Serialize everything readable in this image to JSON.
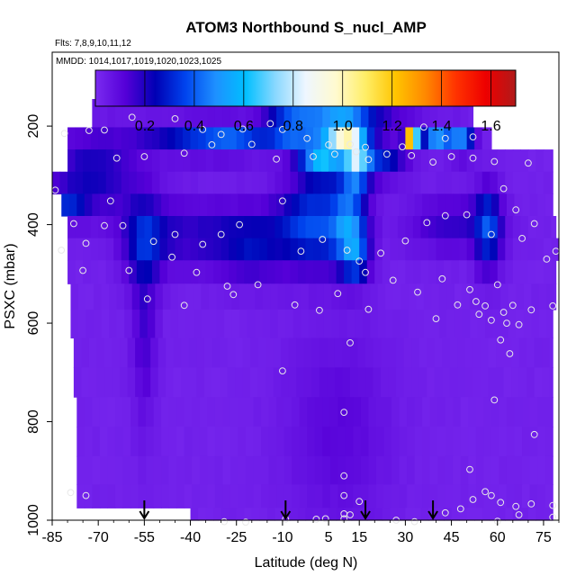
{
  "chart_data": {
    "type": "heatmap",
    "title": "ATOM3 Northbound S_nucl_AMP",
    "subtitle_flights": "Flts: 7,8,9,10,11,12",
    "subtitle_dates": "MMDD: 1014,1017,1019,1020,1023,1025",
    "xlabel": "Latitude (deg N)",
    "ylabel": "PSXC (mbar)",
    "xlim": [
      -85,
      80
    ],
    "ylim": [
      1000,
      50
    ],
    "x_ticks": [
      -85,
      -70,
      -55,
      -40,
      -25,
      -10,
      5,
      15,
      30,
      45,
      60,
      75
    ],
    "y_ticks": [
      1000,
      800,
      600,
      400,
      200
    ],
    "colorbar": {
      "range": [
        0,
        1.7
      ],
      "ticks": [
        0.2,
        0.4,
        0.6,
        0.8,
        1.0,
        1.2,
        1.4,
        1.6
      ],
      "tick_labels": [
        "0.2",
        "0.4",
        "0.6",
        "0.8",
        "1.0",
        "1.2",
        "1.4",
        "1.6"
      ],
      "colors": [
        "#7a2bf0",
        "#5500d8",
        "#0000b4",
        "#0044ee",
        "#1e90ff",
        "#00bfff",
        "#8ad8ff",
        "#eef6ff",
        "#fffad0",
        "#ffee66",
        "#ffc400",
        "#ff8800",
        "#ff3300",
        "#ee0000",
        "#b01a1a"
      ]
    },
    "arrows_latitude": [
      -55,
      -9,
      17,
      39
    ],
    "rows": [
      {
        "p": 180,
        "lat0": -72,
        "lat1": 52
      },
      {
        "p": 225,
        "lat0": -80,
        "lat1": 58
      },
      {
        "p": 270,
        "lat0": -80,
        "lat1": 78
      },
      {
        "p": 315,
        "lat0": -85,
        "lat1": 78
      },
      {
        "p": 360,
        "lat0": -82,
        "lat1": 78
      },
      {
        "p": 405,
        "lat0": -80,
        "lat1": 79
      },
      {
        "p": 450,
        "lat0": -80,
        "lat1": 80
      },
      {
        "p": 495,
        "lat0": -80,
        "lat1": 79
      },
      {
        "p": 545,
        "lat0": -79,
        "lat1": 79
      },
      {
        "p": 600,
        "lat0": -79,
        "lat1": 78
      },
      {
        "p": 660,
        "lat0": -78,
        "lat1": 78
      },
      {
        "p": 720,
        "lat0": -78,
        "lat1": 78
      },
      {
        "p": 780,
        "lat0": -77,
        "lat1": 78
      },
      {
        "p": 840,
        "lat0": -77,
        "lat1": 78
      },
      {
        "p": 900,
        "lat0": -77,
        "lat1": 78
      },
      {
        "p": 955,
        "lat0": -77,
        "lat1": 78
      },
      {
        "p": 995,
        "lat0": -40,
        "lat1": 78
      }
    ],
    "features": [
      {
        "lat": -38,
        "p": 225,
        "amp": 0.25,
        "slat": 14,
        "sp": 25
      },
      {
        "lat": -25,
        "p": 225,
        "amp": 0.2,
        "slat": 8,
        "sp": 20
      },
      {
        "lat": -8,
        "p": 205,
        "amp": 0.25,
        "slat": 5,
        "sp": 30
      },
      {
        "lat": 5,
        "p": 200,
        "amp": 0.55,
        "slat": 10,
        "sp": 18
      },
      {
        "lat": 11,
        "p": 215,
        "amp": 0.75,
        "slat": 4,
        "sp": 18
      },
      {
        "lat": 12,
        "p": 200,
        "amp": 0.35,
        "slat": 14,
        "sp": 15
      },
      {
        "lat": 32,
        "p": 225,
        "amp": 1.35,
        "slat": 1.3,
        "sp": 14
      },
      {
        "lat": 40,
        "p": 225,
        "amp": 0.45,
        "slat": 3,
        "sp": 16
      },
      {
        "lat": 48,
        "p": 230,
        "amp": 0.45,
        "slat": 3,
        "sp": 20
      },
      {
        "lat": 3,
        "p": 270,
        "amp": 0.55,
        "slat": 5,
        "sp": 25
      },
      {
        "lat": 14,
        "p": 280,
        "amp": 0.65,
        "slat": 3,
        "sp": 25
      },
      {
        "lat": 22,
        "p": 280,
        "amp": 0.3,
        "slat": 6,
        "sp": 20
      },
      {
        "lat": -72,
        "p": 300,
        "amp": 0.2,
        "slat": 10,
        "sp": 60
      },
      {
        "lat": -80,
        "p": 360,
        "amp": 0.2,
        "slat": 4,
        "sp": 20
      },
      {
        "lat": -55,
        "p": 430,
        "amp": 0.2,
        "slat": 5,
        "sp": 60
      },
      {
        "lat": -40,
        "p": 420,
        "amp": 0.15,
        "slat": 12,
        "sp": 50
      },
      {
        "lat": -20,
        "p": 440,
        "amp": 0.2,
        "slat": 8,
        "sp": 50
      },
      {
        "lat": 0,
        "p": 400,
        "amp": 0.35,
        "slat": 8,
        "sp": 60
      },
      {
        "lat": 12,
        "p": 400,
        "amp": 0.4,
        "slat": 4,
        "sp": 60
      },
      {
        "lat": 14,
        "p": 470,
        "amp": 0.25,
        "slat": 3,
        "sp": 30
      },
      {
        "lat": 45,
        "p": 400,
        "amp": 0.15,
        "slat": 10,
        "sp": 40
      },
      {
        "lat": 57,
        "p": 410,
        "amp": 0.3,
        "slat": 3,
        "sp": 60
      },
      {
        "lat": -55,
        "p": 600,
        "amp": 0.12,
        "slat": 3,
        "sp": 140
      },
      {
        "lat": 8,
        "p": 820,
        "amp": 0.08,
        "slat": 12,
        "sp": 150
      }
    ],
    "cloud_points": [
      {
        "lat": -73,
        "p": 209
      },
      {
        "lat": -68,
        "p": 208
      },
      {
        "lat": -59,
        "p": 182
      },
      {
        "lat": -45,
        "p": 185
      },
      {
        "lat": -36,
        "p": 207
      },
      {
        "lat": -30,
        "p": 217
      },
      {
        "lat": -23,
        "p": 206
      },
      {
        "lat": -14,
        "p": 195
      },
      {
        "lat": -10,
        "p": 207
      },
      {
        "lat": -2,
        "p": 225
      },
      {
        "lat": 5,
        "p": 238
      },
      {
        "lat": 12,
        "p": 237
      },
      {
        "lat": 17,
        "p": 243
      },
      {
        "lat": 29,
        "p": 242
      },
      {
        "lat": 36,
        "p": 202
      },
      {
        "lat": 43,
        "p": 225
      },
      {
        "lat": 52,
        "p": 222
      },
      {
        "lat": -81,
        "p": 215
      },
      {
        "lat": -64,
        "p": 265
      },
      {
        "lat": -55,
        "p": 262
      },
      {
        "lat": -42,
        "p": 255
      },
      {
        "lat": -33,
        "p": 238
      },
      {
        "lat": -20,
        "p": 237
      },
      {
        "lat": -12,
        "p": 267
      },
      {
        "lat": 0,
        "p": 262
      },
      {
        "lat": 7,
        "p": 257
      },
      {
        "lat": 14,
        "p": 252
      },
      {
        "lat": 18,
        "p": 268
      },
      {
        "lat": 24,
        "p": 257
      },
      {
        "lat": 32,
        "p": 260
      },
      {
        "lat": 39,
        "p": 273
      },
      {
        "lat": 45,
        "p": 262
      },
      {
        "lat": 52,
        "p": 265
      },
      {
        "lat": 59,
        "p": 272
      },
      {
        "lat": 70,
        "p": 275
      },
      {
        "lat": -84,
        "p": 330
      },
      {
        "lat": -78,
        "p": 398
      },
      {
        "lat": -74,
        "p": 438
      },
      {
        "lat": -66,
        "p": 352
      },
      {
        "lat": -62,
        "p": 402
      },
      {
        "lat": -52,
        "p": 434
      },
      {
        "lat": -45,
        "p": 420
      },
      {
        "lat": -36,
        "p": 440
      },
      {
        "lat": -30,
        "p": 420
      },
      {
        "lat": -24,
        "p": 400
      },
      {
        "lat": -10,
        "p": 352
      },
      {
        "lat": -4,
        "p": 454
      },
      {
        "lat": 3,
        "p": 430
      },
      {
        "lat": 11,
        "p": 452
      },
      {
        "lat": 15,
        "p": 474
      },
      {
        "lat": 22,
        "p": 458
      },
      {
        "lat": 30,
        "p": 433
      },
      {
        "lat": 37,
        "p": 396
      },
      {
        "lat": 43,
        "p": 382
      },
      {
        "lat": 50,
        "p": 380
      },
      {
        "lat": 58,
        "p": 420
      },
      {
        "lat": 62,
        "p": 327
      },
      {
        "lat": 66,
        "p": 370
      },
      {
        "lat": 68,
        "p": 428
      },
      {
        "lat": 72,
        "p": 398
      },
      {
        "lat": 76,
        "p": 470
      },
      {
        "lat": 79,
        "p": 454
      },
      {
        "lat": -82,
        "p": 452
      },
      {
        "lat": -75,
        "p": 493
      },
      {
        "lat": -68,
        "p": 402
      },
      {
        "lat": -60,
        "p": 493
      },
      {
        "lat": -46,
        "p": 466
      },
      {
        "lat": -38,
        "p": 497
      },
      {
        "lat": -28,
        "p": 525
      },
      {
        "lat": -18,
        "p": 522
      },
      {
        "lat": -6,
        "p": 563
      },
      {
        "lat": 8,
        "p": 540
      },
      {
        "lat": 17,
        "p": 497
      },
      {
        "lat": 26,
        "p": 513
      },
      {
        "lat": 34,
        "p": 537
      },
      {
        "lat": 42,
        "p": 510
      },
      {
        "lat": 47,
        "p": 563
      },
      {
        "lat": 51,
        "p": 532
      },
      {
        "lat": 53,
        "p": 556
      },
      {
        "lat": 56,
        "p": 565
      },
      {
        "lat": 60,
        "p": 522
      },
      {
        "lat": 62,
        "p": 578
      },
      {
        "lat": 65,
        "p": 564
      },
      {
        "lat": 71,
        "p": 573
      },
      {
        "lat": 78,
        "p": 565
      },
      {
        "lat": -54,
        "p": 551
      },
      {
        "lat": -42,
        "p": 564
      },
      {
        "lat": -26,
        "p": 542
      },
      {
        "lat": 2,
        "p": 574
      },
      {
        "lat": 12,
        "p": 640
      },
      {
        "lat": 18,
        "p": 572
      },
      {
        "lat": 40,
        "p": 591
      },
      {
        "lat": 54,
        "p": 582
      },
      {
        "lat": 58,
        "p": 594
      },
      {
        "lat": 63,
        "p": 600
      },
      {
        "lat": 67,
        "p": 603
      },
      {
        "lat": 61,
        "p": 634
      },
      {
        "lat": -10,
        "p": 697
      },
      {
        "lat": 64,
        "p": 662
      },
      {
        "lat": 59,
        "p": 756
      },
      {
        "lat": 10,
        "p": 781
      },
      {
        "lat": 72,
        "p": 826
      },
      {
        "lat": 51,
        "p": 897
      },
      {
        "lat": -79,
        "p": 944
      },
      {
        "lat": -74,
        "p": 950
      },
      {
        "lat": 10,
        "p": 910
      },
      {
        "lat": 10,
        "p": 950
      },
      {
        "lat": 15,
        "p": 962
      },
      {
        "lat": 10,
        "p": 987
      },
      {
        "lat": 10,
        "p": 997
      },
      {
        "lat": 12,
        "p": 989
      },
      {
        "lat": 4,
        "p": 997
      },
      {
        "lat": -29,
        "p": 1003
      },
      {
        "lat": -22,
        "p": 1004
      },
      {
        "lat": -9,
        "p": 998
      },
      {
        "lat": 1,
        "p": 998
      },
      {
        "lat": 27,
        "p": 1000
      },
      {
        "lat": 33,
        "p": 1003
      },
      {
        "lat": 43,
        "p": 985
      },
      {
        "lat": 48,
        "p": 977
      },
      {
        "lat": 52,
        "p": 958
      },
      {
        "lat": 58,
        "p": 950
      },
      {
        "lat": 61,
        "p": 964
      },
      {
        "lat": 66,
        "p": 972
      },
      {
        "lat": 71,
        "p": 967
      },
      {
        "lat": 78,
        "p": 970
      },
      {
        "lat": 78,
        "p": 994
      },
      {
        "lat": 56,
        "p": 942
      },
      {
        "lat": 60,
        "p": 1002
      },
      {
        "lat": 67,
        "p": 989
      }
    ]
  }
}
